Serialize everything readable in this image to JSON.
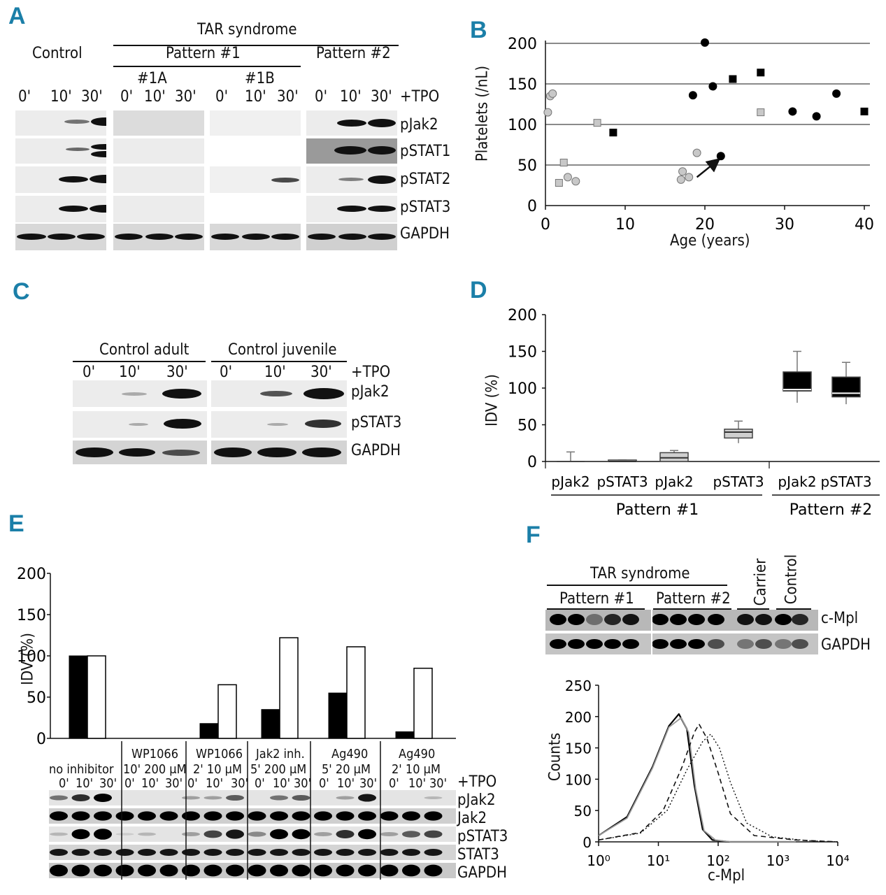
{
  "panels": {
    "A": {
      "label": "A",
      "group_title": "TAR syndrome",
      "control": "Control",
      "pattern1": "Pattern #1",
      "pattern2": "Pattern #2",
      "sub1a": "#1A",
      "sub1b": "#1B",
      "times": [
        "0'",
        "10'",
        "30'"
      ],
      "treatment": "+TPO",
      "rows": [
        "pJak2",
        "pSTAT1",
        "pSTAT2",
        "pSTAT3",
        "GAPDH"
      ]
    },
    "C": {
      "label": "C",
      "adult": "Control adult",
      "juvenile": "Control juvenile",
      "times": [
        "0'",
        "10'",
        "30'"
      ],
      "treatment": "+TPO",
      "rows": [
        "pJak2",
        "pSTAT3",
        "GAPDH"
      ]
    },
    "E": {
      "label": "E",
      "conditions": [
        {
          "name": "no inhibitor",
          "dose": ""
        },
        {
          "name": "WP1066",
          "dose": "10' 200 μM"
        },
        {
          "name": "WP1066",
          "dose": "2' 10 μM"
        },
        {
          "name": "Jak2 inh.",
          "dose": "5' 200 μM"
        },
        {
          "name": "Ag490",
          "dose": "5' 20 μM"
        },
        {
          "name": "Ag490",
          "dose": "2' 10 μM"
        }
      ],
      "times": [
        "0'",
        "10'",
        "30'"
      ],
      "treatment": "+TPO",
      "rows": [
        "pJak2",
        "Jak2",
        "pSTAT3",
        "STAT3",
        "GAPDH"
      ]
    },
    "F": {
      "label": "F",
      "group_title": "TAR syndrome",
      "pattern1": "Pattern #1",
      "pattern2": "Pattern #2",
      "carrier": "Carrier",
      "control": "Control",
      "rows": [
        "c-Mpl",
        "GAPDH"
      ]
    }
  },
  "chart_data": [
    {
      "panel": "B",
      "type": "scatter",
      "xlabel": "Age (years)",
      "ylabel": "Platelets (/nL)",
      "xlim": [
        0,
        40
      ],
      "ylim": [
        0,
        200
      ],
      "xticks": [
        0,
        10,
        20,
        30,
        40
      ],
      "yticks": [
        0,
        50,
        100,
        150,
        200
      ],
      "grid": "horizontal",
      "series": [
        {
          "marker": "circle",
          "fill": "light",
          "points": [
            [
              0.3,
              115
            ],
            [
              0.6,
              135
            ],
            [
              0.9,
              138
            ],
            [
              2.8,
              35
            ],
            [
              3.8,
              30
            ],
            [
              17.0,
              32
            ],
            [
              17.2,
              42
            ],
            [
              18.0,
              35
            ],
            [
              19.0,
              65
            ]
          ]
        },
        {
          "marker": "square",
          "fill": "light",
          "points": [
            [
              1.7,
              28
            ],
            [
              2.3,
              53
            ],
            [
              6.5,
              102
            ],
            [
              27.0,
              115
            ]
          ]
        },
        {
          "marker": "circle",
          "fill": "dark",
          "points": [
            [
              20.0,
              201
            ],
            [
              18.5,
              136
            ],
            [
              21.0,
              147
            ],
            [
              22.0,
              61
            ],
            [
              31.0,
              116
            ],
            [
              34.0,
              110
            ],
            [
              36.5,
              138
            ]
          ]
        },
        {
          "marker": "square",
          "fill": "dark",
          "points": [
            [
              8.5,
              90
            ],
            [
              23.5,
              156
            ],
            [
              27.0,
              164
            ],
            [
              40.0,
              116
            ]
          ]
        }
      ],
      "annotation": {
        "type": "arrow",
        "from": [
          19.0,
          35
        ],
        "to": [
          21.8,
          57
        ]
      }
    },
    {
      "panel": "D",
      "type": "box",
      "ylabel": "IDV (%)",
      "ylim": [
        0,
        200
      ],
      "yticks": [
        0,
        50,
        100,
        150,
        200
      ],
      "categories": [
        "pJak2",
        "pSTAT3",
        "pJak2",
        "pSTAT3",
        "pJak2",
        "pSTAT3"
      ],
      "groups": [
        {
          "name": "Pattern #1",
          "span": [
            0,
            3
          ]
        },
        {
          "name": "Pattern #2",
          "span": [
            4,
            5
          ]
        }
      ],
      "boxes": [
        {
          "min": 0,
          "q1": 0,
          "median": 0,
          "q3": 0,
          "max": 13,
          "fill": "none"
        },
        {
          "min": 0,
          "q1": 0,
          "median": 0,
          "q3": 2,
          "max": 2,
          "fill": "light"
        },
        {
          "min": 0,
          "q1": 0,
          "median": 5,
          "q3": 12,
          "max": 15,
          "fill": "light"
        },
        {
          "min": 25,
          "q1": 32,
          "median": 40,
          "q3": 44,
          "max": 55,
          "fill": "light"
        },
        {
          "min": 80,
          "q1": 96,
          "median": 98,
          "q3": 122,
          "max": 150,
          "fill": "dark"
        },
        {
          "min": 78,
          "q1": 88,
          "median": 93,
          "q3": 115,
          "max": 135,
          "fill": "dark"
        }
      ]
    },
    {
      "panel": "E",
      "type": "bar",
      "ylabel": "IDV (%)",
      "ylim": [
        0,
        200
      ],
      "yticks": [
        0,
        50,
        100,
        150,
        200
      ],
      "categories": [
        "no inhibitor",
        "WP1066 10' 200 μM",
        "WP1066 2' 10 μM",
        "Jak2 inh. 5' 200 μM",
        "Ag490 5' 20 μM",
        "Ag490 2' 10 μM"
      ],
      "series": [
        {
          "fill": "black",
          "values": [
            100,
            0,
            18,
            35,
            55,
            8
          ]
        },
        {
          "fill": "white",
          "values": [
            100,
            0,
            65,
            122,
            111,
            85
          ]
        }
      ]
    },
    {
      "panel": "F",
      "type": "line",
      "xlabel": "c-Mpl",
      "ylabel": "Counts",
      "xscale": "log",
      "xlim": [
        1,
        10000
      ],
      "ylim": [
        0,
        250
      ],
      "xticks": [
        "10⁰",
        "10¹",
        "10²",
        "10³",
        "10⁴"
      ],
      "yticks": [
        0,
        50,
        100,
        150,
        200,
        250
      ],
      "series": [
        {
          "style": "solid",
          "points": [
            [
              1,
              10
            ],
            [
              3,
              40
            ],
            [
              8,
              120
            ],
            [
              15,
              185
            ],
            [
              22,
              204
            ],
            [
              30,
              180
            ],
            [
              40,
              90
            ],
            [
              55,
              20
            ],
            [
              80,
              3
            ],
            [
              150,
              0
            ],
            [
              2000,
              0
            ]
          ]
        },
        {
          "style": "gray",
          "points": [
            [
              1,
              10
            ],
            [
              3,
              38
            ],
            [
              8,
              118
            ],
            [
              15,
              183
            ],
            [
              24,
              198
            ],
            [
              32,
              175
            ],
            [
              42,
              85
            ],
            [
              58,
              18
            ],
            [
              90,
              3
            ],
            [
              160,
              0
            ],
            [
              2000,
              0
            ]
          ]
        },
        {
          "style": "dashed",
          "points": [
            [
              1,
              3
            ],
            [
              5,
              15
            ],
            [
              12,
              50
            ],
            [
              25,
              120
            ],
            [
              40,
              175
            ],
            [
              48,
              188
            ],
            [
              65,
              165
            ],
            [
              100,
              110
            ],
            [
              160,
              45
            ],
            [
              400,
              10
            ],
            [
              2000,
              3
            ],
            [
              10000,
              0
            ]
          ]
        },
        {
          "style": "dashdot",
          "points": [
            [
              1,
              3
            ],
            [
              5,
              14
            ],
            [
              14,
              50
            ],
            [
              30,
              115
            ],
            [
              55,
              160
            ],
            [
              75,
              172
            ],
            [
              105,
              150
            ],
            [
              160,
              95
            ],
            [
              300,
              30
            ],
            [
              800,
              8
            ],
            [
              3000,
              2
            ],
            [
              10000,
              0
            ]
          ]
        }
      ]
    }
  ]
}
